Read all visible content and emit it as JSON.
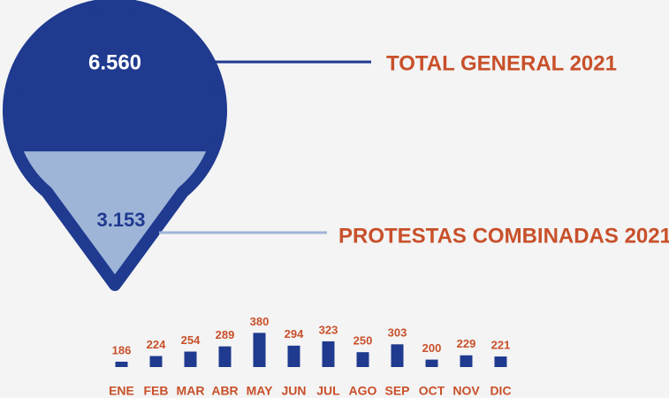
{
  "summary": [
    {
      "value": 6560,
      "label": "6.560",
      "name": "TOTAL GENERAL 2021"
    },
    {
      "value": 3153,
      "label": "3.153",
      "name": "PROTESTAS COMBINADAS 2021"
    }
  ],
  "chart_data": {
    "type": "bar",
    "categories": [
      "ENE",
      "FEB",
      "MAR",
      "ABR",
      "MAY",
      "JUN",
      "JUL",
      "AGO",
      "SEP",
      "OCT",
      "NOV",
      "DIC"
    ],
    "values": [
      186,
      224,
      254,
      289,
      380,
      294,
      323,
      250,
      303,
      200,
      229,
      221
    ],
    "color": "#1f3a8f",
    "ylim": [
      150,
      400
    ]
  }
}
